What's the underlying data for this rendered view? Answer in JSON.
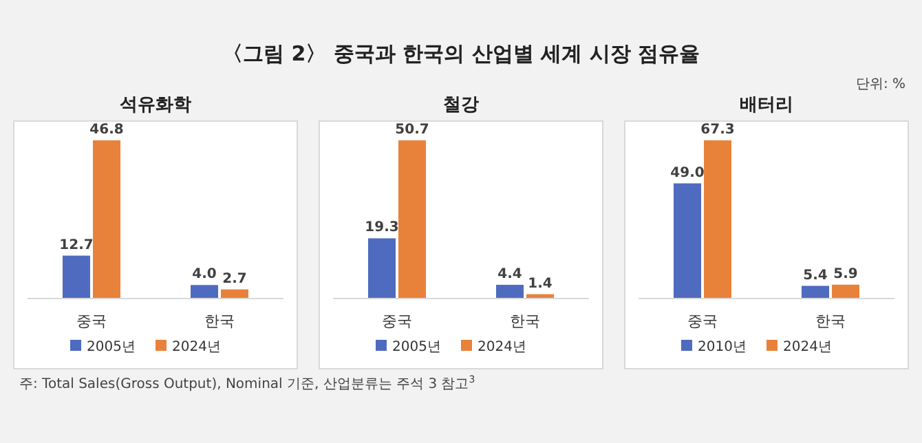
{
  "chart_data": [
    {
      "type": "other",
      "title": "〈그림 2〉 중국과 한국의 산업별 세계 시장 점유율",
      "annotations": [
        "단위: %",
        "주: Total Sales(Gross Output), Nominal 기준, 산업분류는 주석 3 참고$^{3}$"
      ]
    },
    {
      "type": "bar",
      "title": "석유화학",
      "categories": [
        "중국",
        "한국"
      ],
      "legend": "bottom",
      "series": [
        {
          "name": "2005년",
          "color": "#4f6bc0",
          "values": [
            12.7,
            4.0
          ],
          "value_labels": [
            "12.7",
            "4.0"
          ]
        },
        {
          "name": "2024년",
          "color": "#e8823a",
          "values": [
            46.8,
            2.7
          ],
          "value_labels": [
            "46.8",
            "2.7"
          ]
        }
      ]
    },
    {
      "type": "bar",
      "title": "철강",
      "categories": [
        "중국",
        "한국"
      ],
      "legend": "bottom",
      "series": [
        {
          "name": "2005년",
          "color": "#4f6bc0",
          "values": [
            19.3,
            4.4
          ],
          "value_labels": [
            "19.3",
            "4.4"
          ]
        },
        {
          "name": "2024년",
          "color": "#e8823a",
          "values": [
            50.7,
            1.4
          ],
          "value_labels": [
            "50.7",
            "1.4"
          ]
        }
      ]
    },
    {
      "type": "bar",
      "title": "배터리",
      "categories": [
        "중국",
        "한국"
      ],
      "legend": "bottom",
      "series": [
        {
          "name": "2010년",
          "color": "#4f6bc0",
          "values": [
            49.0,
            5.4
          ],
          "value_labels": [
            "49.0",
            "5.4"
          ]
        },
        {
          "name": "2024년",
          "color": "#e8823a",
          "values": [
            67.3,
            5.9
          ],
          "value_labels": [
            "67.3",
            "5.9"
          ]
        }
      ]
    }
  ]
}
